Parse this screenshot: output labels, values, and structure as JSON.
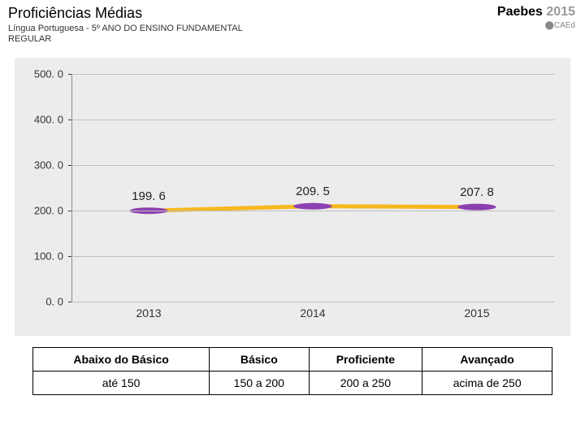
{
  "header": {
    "title": "Proficiências Médias",
    "subtitle_line1": "Língua Portuguesa - 5º ANO DO ENSINO FUNDAMENTAL",
    "subtitle_line2": "REGULAR",
    "brand_bold": "Paebes",
    "brand_year": "2015",
    "brand_logo": "⬤CAEd"
  },
  "chart": {
    "type": "line",
    "background_color": "#ececec",
    "grid_color": "#bfbfbf",
    "line_color": "#f6b81d",
    "line_width": 5,
    "marker_color": "#8c3fb0",
    "marker_radius": 4,
    "ylim": [
      0,
      500
    ],
    "ytick_step": 100,
    "ylabels": [
      "0. 0",
      "100. 0",
      "200. 0",
      "300. 0",
      "400. 0",
      "500. 0"
    ],
    "categories": [
      "2013",
      "2014",
      "2015"
    ],
    "values": [
      199.6,
      209.5,
      207.8
    ],
    "value_labels": [
      "199. 6",
      "209. 5",
      "207. 8"
    ],
    "x_positions_pct": [
      16,
      50,
      84
    ],
    "label_fontsize": 13
  },
  "legend": {
    "headers": [
      "Abaixo do Básico",
      "Básico",
      "Proficiente",
      "Avançado"
    ],
    "ranges": [
      "até 150",
      "150 a 200",
      "200 a 250",
      "acima de 250"
    ]
  }
}
